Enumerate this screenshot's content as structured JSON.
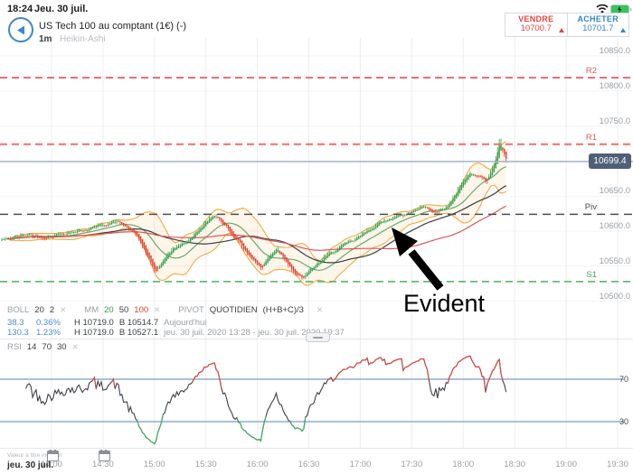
{
  "status_bar": {
    "time": "18:24",
    "date": "Jeu. 30 juil."
  },
  "header": {
    "instrument": "US Tech 100 au comptant (1€) (-)",
    "timeframe": "1m",
    "chart_style": "Heikin-Ashi"
  },
  "trade_buttons": {
    "sell_label": "VENDRE",
    "sell_price": "10700.7",
    "buy_label": "ACHETER",
    "buy_price": "10701.7"
  },
  "indicator_legend": {
    "boll": {
      "name": "BOLL",
      "p1": "20",
      "p2": "2",
      "close": "✕"
    },
    "mm": {
      "name": "MM",
      "p1": "20",
      "p2": "50",
      "p3": "100",
      "close": "✕"
    },
    "pivot": {
      "name": "PIVOT",
      "type": "QUOTIDIEN",
      "formula": "(H+B+C)/3",
      "close": "✕"
    },
    "row_today": {
      "v1": "38.3",
      "v2": "0.36%",
      "high": "H 10719.0",
      "low": "B 10514.7",
      "range": "Aujourd'hui"
    },
    "row_session": {
      "v1": "130.3",
      "v2": "1.23%",
      "high": "H 10719.0",
      "low": "B 10527.1",
      "range": "jeu. 30 juil. 2020 13:28 - jeu. 30 juil. 2020 19:37"
    }
  },
  "rsi_legend": {
    "name": "RSI",
    "p1": "14",
    "p2": "70",
    "p3": "30",
    "close": "✕"
  },
  "price_axis": {
    "labels": [
      {
        "text": "10850.0",
        "price": 10850
      },
      {
        "text": "10800.0",
        "price": 10800
      },
      {
        "text": "10750.0",
        "price": 10750
      },
      {
        "text": "10650.0",
        "price": 10650
      },
      {
        "text": "10600.0",
        "price": 10600
      },
      {
        "text": "10550.0",
        "price": 10550
      },
      {
        "text": "10500.0",
        "price": 10500
      }
    ]
  },
  "levels": [
    {
      "name": "R2",
      "price": 10819,
      "color": "#e05b5b",
      "line": "#ef6e6e",
      "width": 2,
      "dash": "8 5"
    },
    {
      "name": "R1",
      "price": 10724,
      "color": "#e05b5b",
      "line": "#ef6e6e",
      "width": 2,
      "dash": "8 5"
    },
    {
      "name": "Piv",
      "price": 10624,
      "color": "#4a4d52",
      "line": "#4b4e54",
      "width": 1.5,
      "dash": "9 6"
    },
    {
      "name": "S1",
      "price": 10528,
      "color": "#3aa65a",
      "line": "#49b163",
      "width": 1.5,
      "dash": "8 5"
    }
  ],
  "current_price": {
    "text": "10699.4",
    "value": 10699.4
  },
  "rsi_axis": {
    "overbought": "70",
    "oversold": "30"
  },
  "time_axis": [
    {
      "label": "14:00",
      "m": 30
    },
    {
      "label": "14:30",
      "m": 60
    },
    {
      "label": "15:00",
      "m": 90
    },
    {
      "label": "15:30",
      "m": 120
    },
    {
      "label": "16:00",
      "m": 150
    },
    {
      "label": "16:30",
      "m": 180
    },
    {
      "label": "17:00",
      "m": 210
    },
    {
      "label": "17:30",
      "m": 240
    },
    {
      "label": "18:00",
      "m": 270
    },
    {
      "label": "18:30",
      "m": 300
    },
    {
      "label": "19:00",
      "m": 330
    },
    {
      "label": "19:30",
      "m": 360
    }
  ],
  "footer": {
    "disclaimer": "Valeur à titre indicatif",
    "date": "jeu. 30 juil.",
    "calendar_marks_m": [
      30,
      60
    ]
  },
  "annotation": {
    "text": "Evident"
  },
  "chart_data": {
    "type": "candlestick",
    "candle_style": "heikin-ashi",
    "timeframe_minutes": 1,
    "session_start_label": "13:30",
    "y_axis": {
      "min": 10500,
      "max": 10850,
      "tick": 50
    },
    "grid_prices": [
      10850,
      10800,
      10750,
      10700,
      10650,
      10600,
      10550,
      10500
    ],
    "last_price": 10699.4,
    "price_anchors": [
      [
        2,
        10588
      ],
      [
        16,
        10595
      ],
      [
        26,
        10591
      ],
      [
        37,
        10597
      ],
      [
        48,
        10601
      ],
      [
        58,
        10608
      ],
      [
        68,
        10614
      ],
      [
        74,
        10605
      ],
      [
        80,
        10592
      ],
      [
        86,
        10563
      ],
      [
        90,
        10540
      ],
      [
        94,
        10556
      ],
      [
        100,
        10574
      ],
      [
        108,
        10584
      ],
      [
        114,
        10597
      ],
      [
        121,
        10617
      ],
      [
        126,
        10621
      ],
      [
        131,
        10608
      ],
      [
        139,
        10584
      ],
      [
        147,
        10559
      ],
      [
        152,
        10547
      ],
      [
        157,
        10566
      ],
      [
        161,
        10575
      ],
      [
        167,
        10556
      ],
      [
        172,
        10538
      ],
      [
        176,
        10533
      ],
      [
        183,
        10550
      ],
      [
        191,
        10566
      ],
      [
        198,
        10578
      ],
      [
        206,
        10587
      ],
      [
        212,
        10597
      ],
      [
        218,
        10607
      ],
      [
        225,
        10616
      ],
      [
        230,
        10621
      ],
      [
        236,
        10623
      ],
      [
        241,
        10630
      ],
      [
        246,
        10636
      ],
      [
        250,
        10631
      ],
      [
        254,
        10627
      ],
      [
        260,
        10634
      ],
      [
        265,
        10652
      ],
      [
        270,
        10671
      ],
      [
        274,
        10684
      ],
      [
        280,
        10677
      ],
      [
        283,
        10671
      ],
      [
        288,
        10697
      ],
      [
        291,
        10728
      ],
      [
        293,
        10712
      ],
      [
        295,
        10700
      ]
    ],
    "indicators": {
      "bollinger": {
        "period": 20,
        "stdev": 2
      },
      "moving_averages": [
        {
          "period": 20,
          "color": "#69a96d"
        },
        {
          "period": 50,
          "color": "#3c3f46"
        },
        {
          "period": 100,
          "color": "#e05555"
        }
      ],
      "rsi": {
        "period": 14,
        "overbought": 70,
        "oversold": 30
      }
    },
    "colors": {
      "up": "#2fa14c",
      "down": "#e23b2e",
      "boll": "#f3a93e",
      "boll_fill": "rgba(243,169,62,0.10)",
      "grid_v": "#ecedf0",
      "grid_h": "#f2f3f5",
      "price_line": "#a3b3ca",
      "rsi_line": "#3d4147",
      "rsi_ob": "#e0453a",
      "rsi_os": "#3fae5a",
      "rsi_level": "#7b9cc0"
    }
  }
}
